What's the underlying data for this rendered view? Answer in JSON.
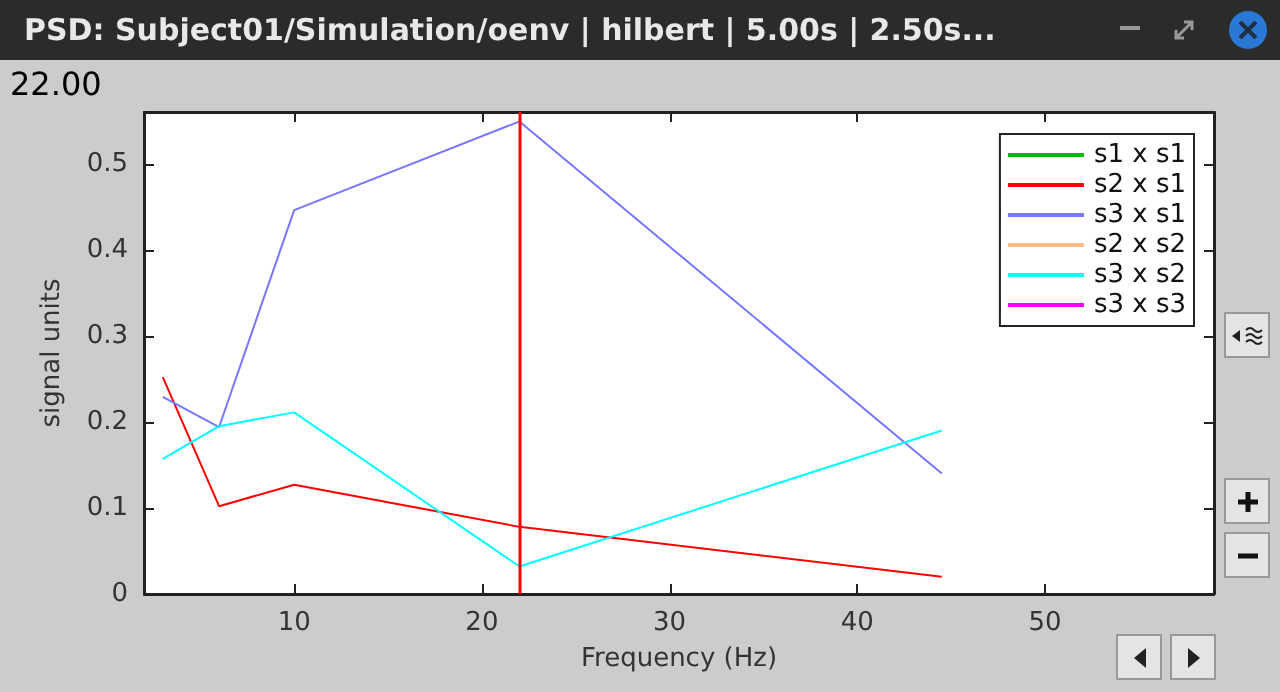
{
  "chart_data": {
    "type": "line",
    "title": "PSD: Subject01/Simulation/oenv | hilbert | 5.00s | 2.50s...",
    "xlabel": "Frequency (Hz)",
    "ylabel": "signal units",
    "x": [
      3,
      6,
      10,
      22,
      44.5
    ],
    "series": [
      {
        "name": "s1 x s1",
        "color": "#00bb00",
        "values": [
          null,
          null,
          null,
          null,
          null
        ]
      },
      {
        "name": "s2 x s1",
        "color": "#ff0000",
        "values": [
          0.252,
          0.102,
          0.127,
          0.078,
          0.02
        ]
      },
      {
        "name": "s3 x s1",
        "color": "#7777ff",
        "values": [
          0.229,
          0.194,
          0.446,
          0.549,
          0.14
        ]
      },
      {
        "name": "s2 x s2",
        "color": "#ffbb88",
        "values": [
          null,
          null,
          null,
          null,
          null
        ]
      },
      {
        "name": "s3 x s2",
        "color": "#00ffff",
        "values": [
          0.157,
          0.195,
          0.211,
          0.032,
          0.19
        ]
      },
      {
        "name": "s3 x s3",
        "color": "#ff00ff",
        "values": [
          null,
          null,
          null,
          null,
          null
        ]
      }
    ],
    "xlim": [
      2,
      59
    ],
    "xticks": [
      10,
      20,
      30,
      40,
      50
    ],
    "ylim": [
      0,
      0.56
    ],
    "yticks": [
      0,
      0.1,
      0.2,
      0.3,
      0.4,
      0.5
    ],
    "ref_lines": [
      {
        "axis": "x",
        "value": 22,
        "color": "#ff0000"
      }
    ],
    "annotations": [
      "22.00"
    ],
    "grid": false,
    "legend": "top right",
    "marker": "none",
    "line_style": "solid"
  }
}
